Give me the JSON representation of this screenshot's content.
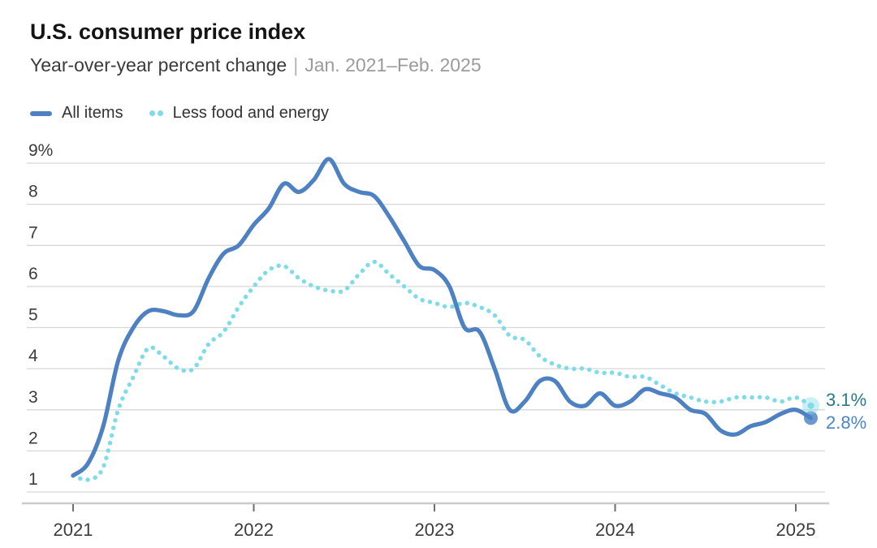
{
  "chart_data": {
    "type": "line",
    "title": "U.S. consumer price index",
    "subtitle": "Year-over-year percent change",
    "subtitle_separator": "|",
    "date_range": "Jan. 2021–Feb. 2025",
    "x_unit": "month",
    "x_start": "2021-01",
    "x_end": "2025-02",
    "x_tick_labels": [
      "2021",
      "2022",
      "2023",
      "2024",
      "2025"
    ],
    "y_tick_labels": [
      "9%",
      "8",
      "7",
      "6",
      "5",
      "4",
      "3",
      "2",
      "1"
    ],
    "y_tick_values": [
      9,
      8,
      7,
      6,
      5,
      4,
      3,
      2,
      1
    ],
    "ylim": [
      1,
      9
    ],
    "grid": "horizontal-only",
    "legend_position": "top-left",
    "axis_text_color": "#3c3c3c",
    "grid_color": "#d7d7d7",
    "baseline_color": "#cbcbcb",
    "tick_color": "#6e6e6e",
    "series": [
      {
        "name": "All items",
        "style": "solid",
        "color": "#4d81c2",
        "end_label": "2.8%",
        "end_label_color": "#4a86c4",
        "values": [
          1.4,
          1.7,
          2.6,
          4.2,
          5.0,
          5.4,
          5.4,
          5.3,
          5.4,
          6.2,
          6.8,
          7.0,
          7.5,
          7.9,
          8.5,
          8.3,
          8.6,
          9.1,
          8.5,
          8.3,
          8.2,
          7.7,
          7.1,
          6.5,
          6.4,
          6.0,
          5.0,
          4.9,
          4.0,
          3.0,
          3.2,
          3.7,
          3.7,
          3.2,
          3.1,
          3.4,
          3.1,
          3.2,
          3.5,
          3.4,
          3.3,
          3.0,
          2.9,
          2.5,
          2.4,
          2.6,
          2.7,
          2.9,
          3.0,
          2.8
        ]
      },
      {
        "name": "Less food and energy",
        "style": "dotted",
        "color": "#7edce8",
        "end_label": "3.1%",
        "end_label_color": "#27798b",
        "values": [
          1.4,
          1.3,
          1.6,
          3.0,
          3.8,
          4.5,
          4.3,
          4.0,
          4.0,
          4.6,
          4.9,
          5.5,
          6.0,
          6.4,
          6.5,
          6.2,
          6.0,
          5.9,
          5.9,
          6.3,
          6.6,
          6.3,
          6.0,
          5.7,
          5.6,
          5.5,
          5.6,
          5.5,
          5.3,
          4.8,
          4.7,
          4.3,
          4.1,
          4.0,
          4.0,
          3.9,
          3.9,
          3.8,
          3.8,
          3.6,
          3.4,
          3.3,
          3.2,
          3.2,
          3.3,
          3.3,
          3.3,
          3.2,
          3.3,
          3.1
        ]
      }
    ]
  }
}
